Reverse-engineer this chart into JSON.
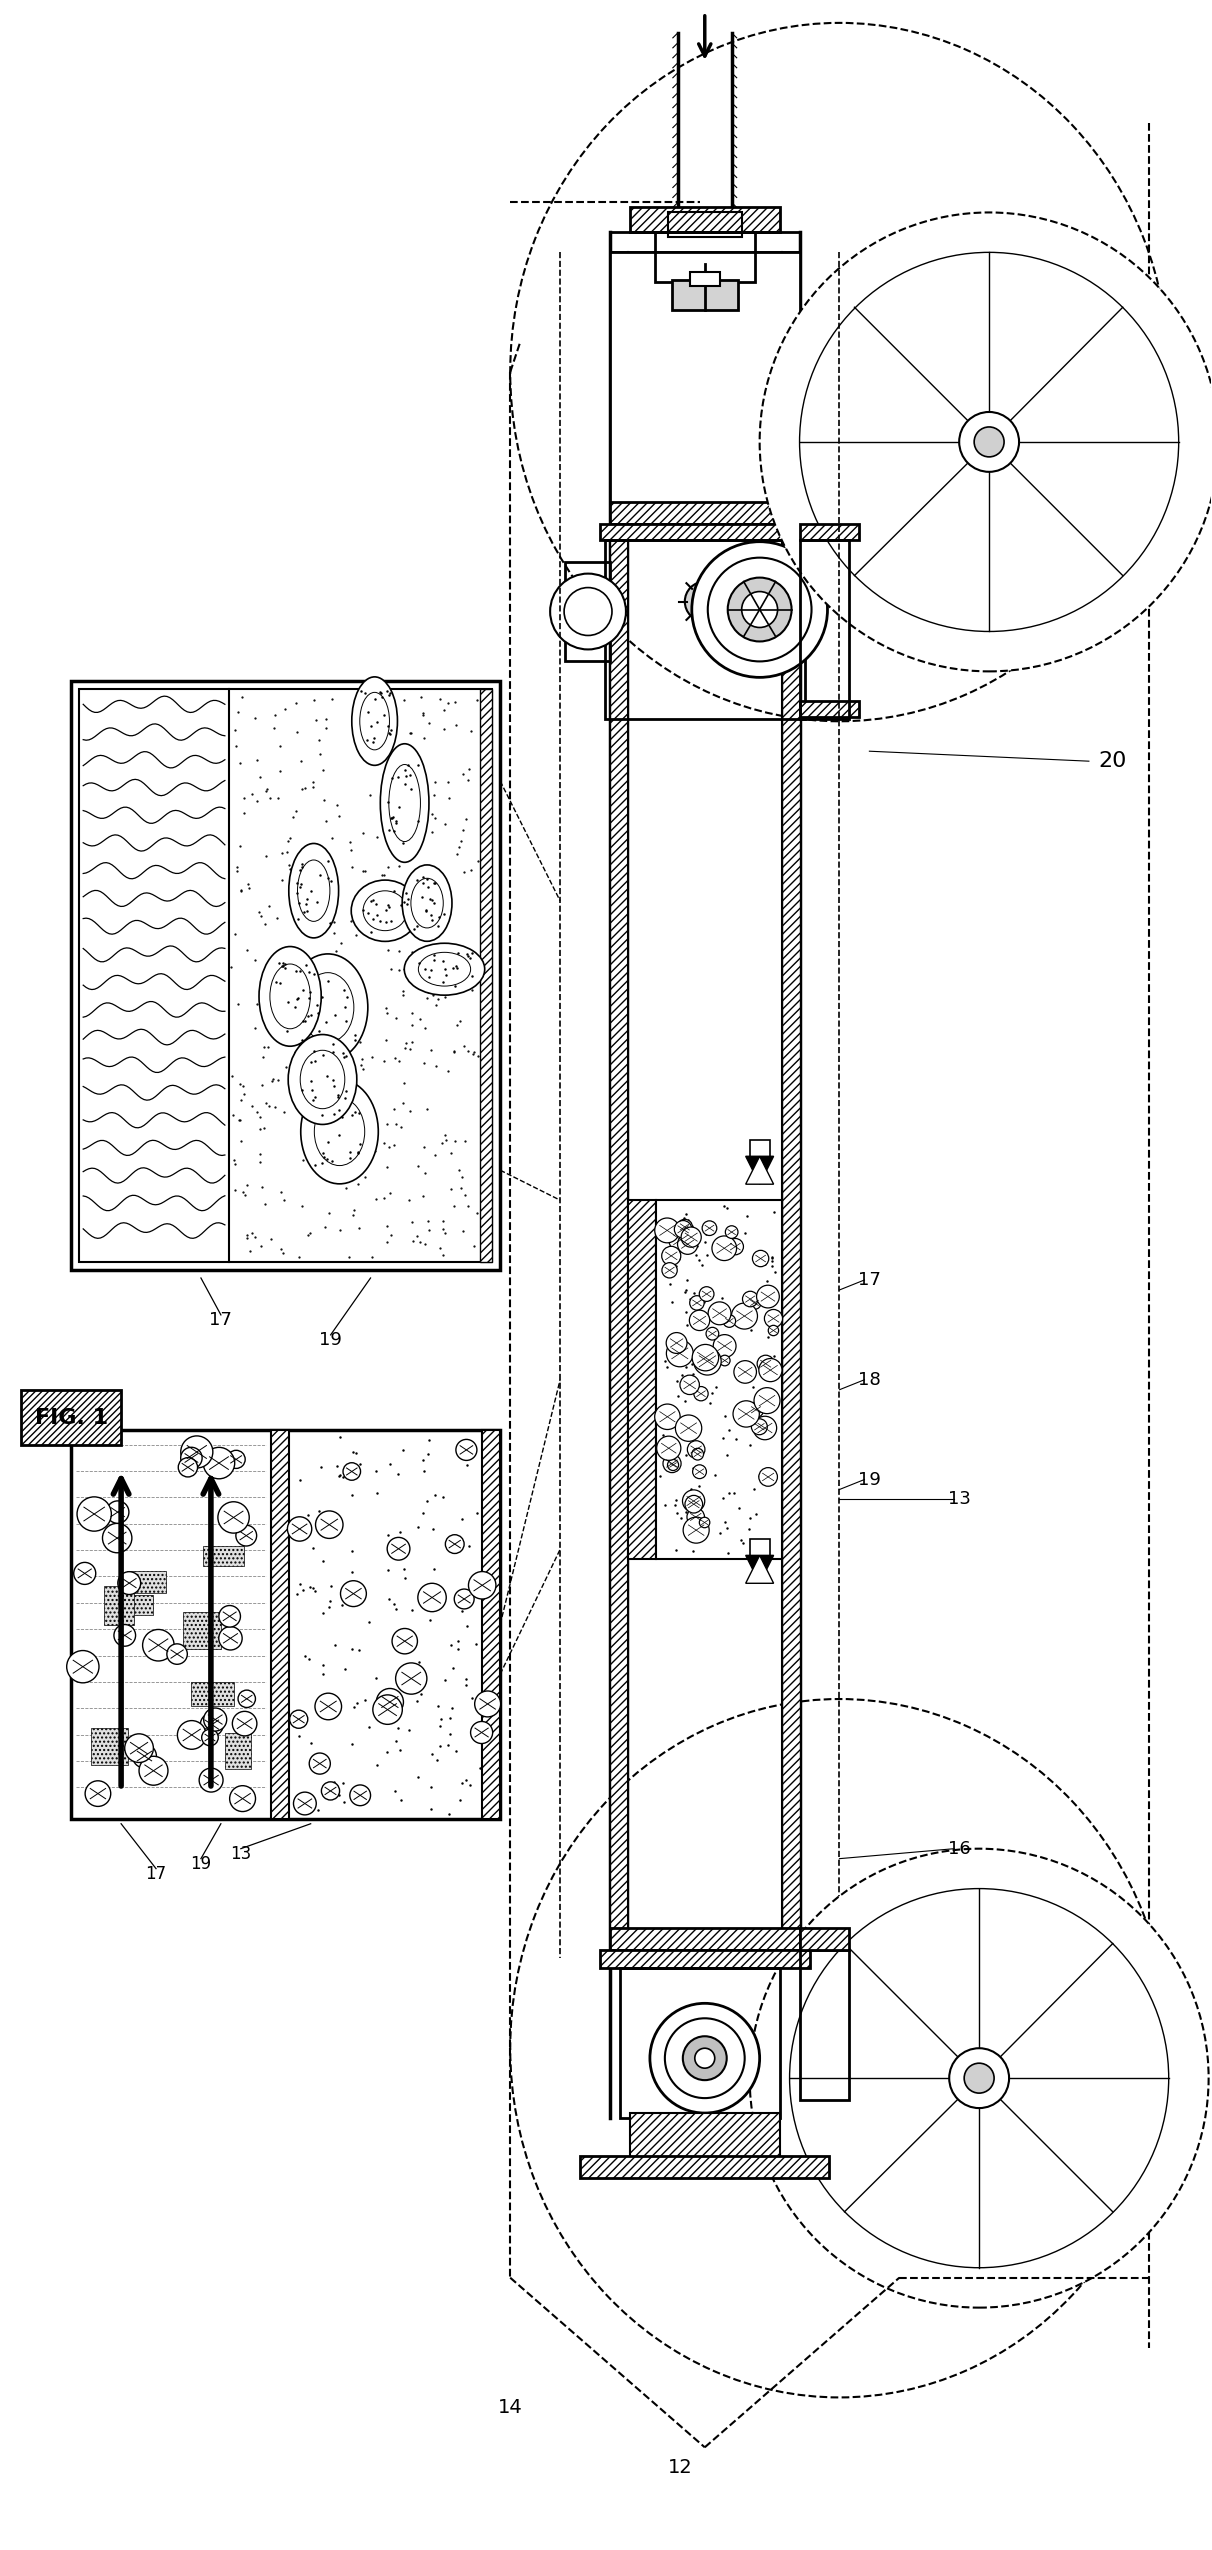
{
  "title": "FIG. 1",
  "background_color": "#ffffff",
  "fig_width": 12.12,
  "fig_height": 25.5,
  "dpi": 100,
  "labels": {
    "fig1": "FIG. 1",
    "n12": "12",
    "n13": "13",
    "n14": "14",
    "n16": "16",
    "n17": "17",
    "n18": "18",
    "n19": "19",
    "n20": "20"
  }
}
